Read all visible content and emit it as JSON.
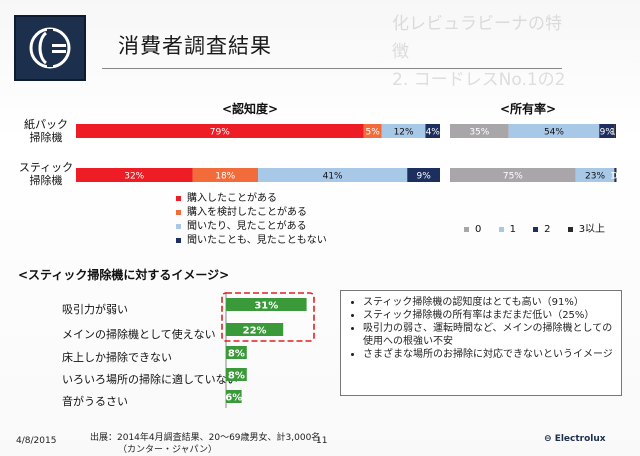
{
  "slide": {
    "title": "消費者調査結果",
    "page_number": "11",
    "date": "4/8/2015",
    "source_line1": "出展：2014年4月調査結果、20～69歳男女、計3,000名",
    "source_line2": "（カンター・ジャパン）",
    "brand": "Electrolux",
    "ghost_text1": "化レビュラビーナの特徴",
    "ghost_text2": "2. コードレスNo.1の2"
  },
  "sections": {
    "awareness_title": "<認知度>",
    "ownership_title": "<所有率>",
    "image_title": "<スティック掃除機に対するイメージ>"
  },
  "chart_data": [
    {
      "type": "bar",
      "orientation": "horizontal-stacked-100",
      "title": "<認知度>",
      "categories": [
        "紙パック掃除機",
        "スティック掃除機"
      ],
      "series": [
        {
          "name": "購入したことがある",
          "color": "#ee1c24",
          "values": [
            79,
            32
          ]
        },
        {
          "name": "購入を検討したことがある",
          "color": "#f26b3a",
          "values": [
            5,
            18
          ]
        },
        {
          "name": "聞いたり、見たことがある",
          "color": "#a8c8e8",
          "values": [
            12,
            41
          ]
        },
        {
          "name": "聞いたことも、見たこともない",
          "color": "#1c2f5e",
          "values": [
            4,
            9
          ]
        }
      ],
      "data_labels": [
        [
          "79%",
          "5%",
          "12%",
          "4%"
        ],
        [
          "32%",
          "18%",
          "41%",
          "9%"
        ]
      ]
    },
    {
      "type": "bar",
      "orientation": "horizontal-stacked-100",
      "title": "<所有率>",
      "categories": [
        "紙パック掃除機",
        "スティック掃除機"
      ],
      "series": [
        {
          "name": "0",
          "color": "#a9a6aa",
          "values": [
            35,
            75
          ]
        },
        {
          "name": "1",
          "color": "#a8c8e8",
          "values": [
            54,
            23
          ]
        },
        {
          "name": "2",
          "color": "#1c2f5e",
          "values": [
            9,
            1
          ]
        },
        {
          "name": "3以上",
          "color": "#2a2a2a",
          "values": [
            1,
            0
          ]
        }
      ],
      "data_labels": [
        [
          "35%",
          "54%",
          "9%",
          "1%"
        ],
        [
          "75%",
          "23%",
          "1%",
          "0%"
        ]
      ]
    },
    {
      "type": "bar",
      "orientation": "horizontal",
      "title": "<スティック掃除機に対するイメージ>",
      "categories": [
        "吸引力が弱い",
        "メインの掃除機として使えない",
        "床上しか掃除できない",
        "いろいろ場所の掃除に適していない",
        "音がうるさい"
      ],
      "values": [
        31,
        22,
        8,
        8,
        6
      ],
      "data_labels": [
        "31%",
        "22%",
        "8%",
        "8%",
        "6%"
      ],
      "color": "#3a9a3a",
      "highlighted": [
        "吸引力が弱い",
        "メインの掃除機として使えない"
      ]
    }
  ],
  "notes": [
    "スティック掃除機の認知度はとても高い（91%）",
    "スティック掃除機の所有率はまだまだ低い（25%）",
    "吸引力の弱さ、運転時間など、メインの掃除機としての使用への根強い不安",
    "さまざまな場所のお掃除に対応できないというイメージ"
  ]
}
